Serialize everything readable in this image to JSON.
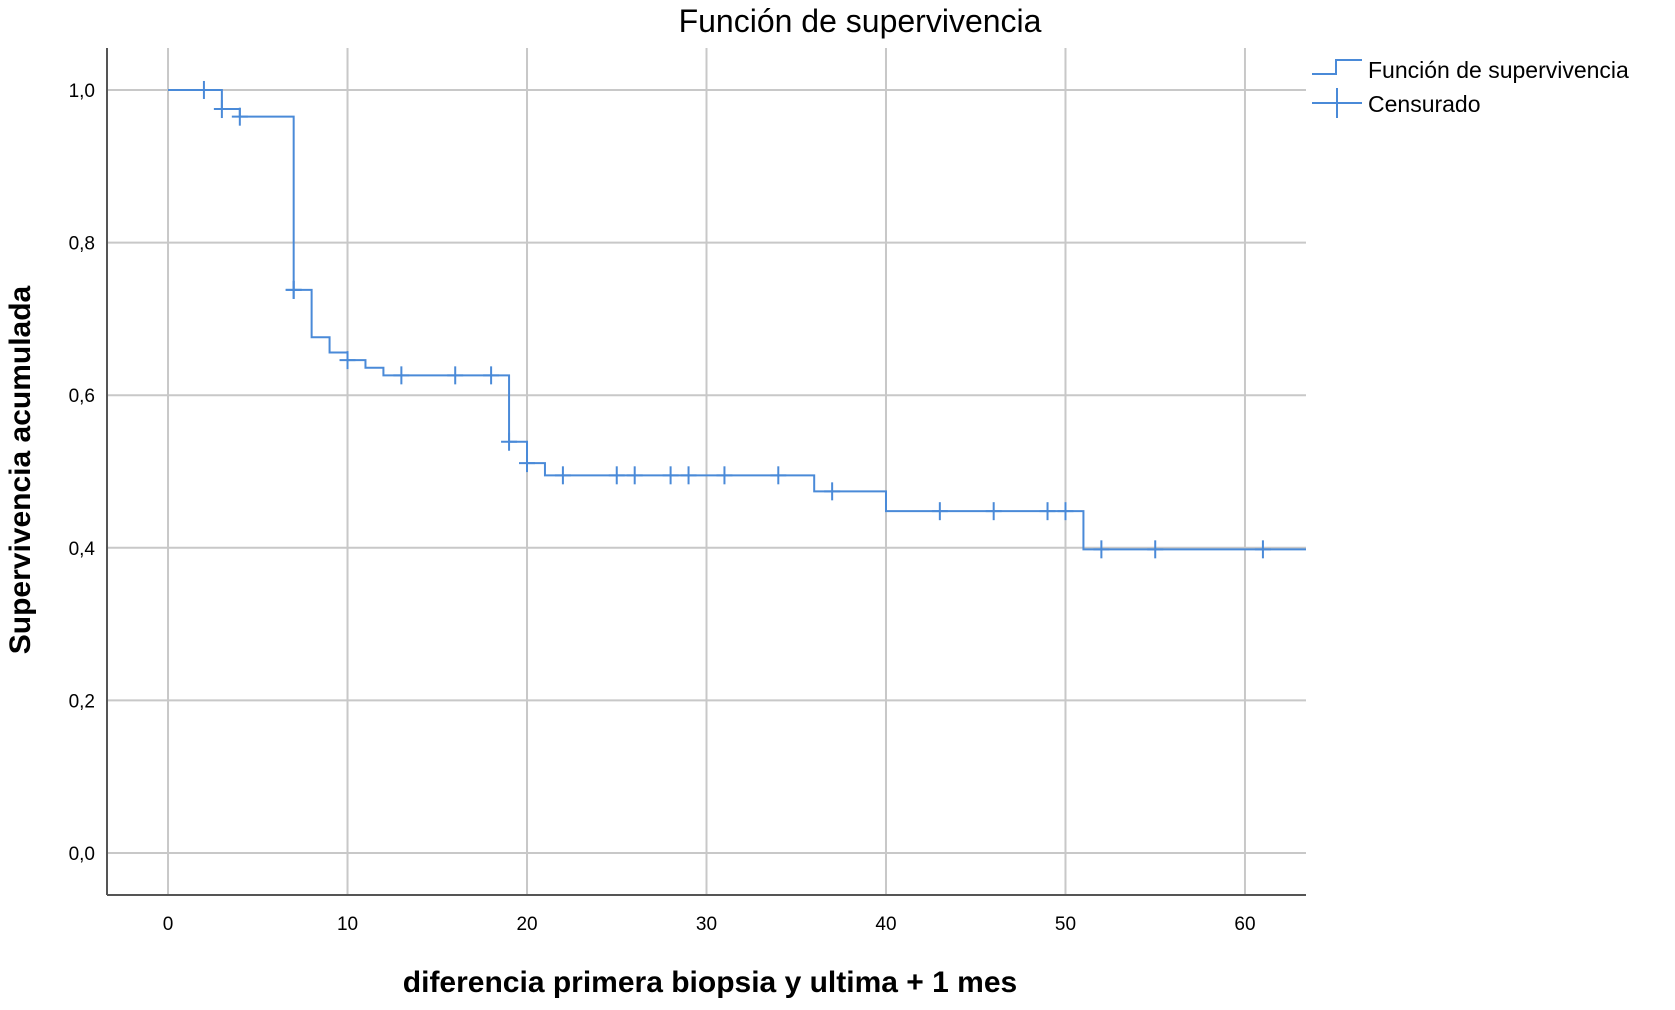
{
  "chart_data": {
    "type": "line",
    "title": "Función de supervivencia",
    "xlabel": "diferencia primera biopsia y ultima + 1 mes",
    "ylabel": "Supervivencia acumulada",
    "xlim": [
      -3.4,
      63.4
    ],
    "ylim": [
      -0.055,
      1.055
    ],
    "x_ticks": [
      0,
      10,
      20,
      30,
      40,
      50,
      60
    ],
    "x_tick_labels": [
      "0",
      "10",
      "20",
      "30",
      "40",
      "50",
      "60"
    ],
    "y_ticks": [
      0.0,
      0.2,
      0.4,
      0.6,
      0.8,
      1.0
    ],
    "y_tick_labels": [
      "0,0",
      "0,2",
      "0,4",
      "0,6",
      "0,8",
      "1,0"
    ],
    "grid": true,
    "legend_position": "top-right",
    "legend": [
      {
        "label": "Función de supervivencia",
        "symbol": "step"
      },
      {
        "label": "Censurado",
        "symbol": "plus"
      }
    ],
    "colors": {
      "series": "#4a8ad8",
      "grid": "#c8c8c8",
      "axis": "#555555"
    },
    "series": [
      {
        "name": "Función de supervivencia",
        "kind": "step",
        "points": [
          [
            0,
            1.0
          ],
          [
            3,
            0.975
          ],
          [
            4,
            0.965
          ],
          [
            7,
            0.738
          ],
          [
            8,
            0.676
          ],
          [
            9,
            0.656
          ],
          [
            10,
            0.646
          ],
          [
            11,
            0.636
          ],
          [
            12,
            0.626
          ],
          [
            19,
            0.539
          ],
          [
            20,
            0.511
          ],
          [
            21,
            0.495
          ],
          [
            36,
            0.474
          ],
          [
            40,
            0.448
          ],
          [
            51,
            0.398
          ],
          [
            63.4,
            0.398
          ]
        ]
      },
      {
        "name": "Censurado",
        "kind": "censor",
        "points": [
          [
            2,
            1.0
          ],
          [
            3,
            0.975
          ],
          [
            4,
            0.965
          ],
          [
            7,
            0.738
          ],
          [
            7,
            0.738
          ],
          [
            10,
            0.646
          ],
          [
            13,
            0.626
          ],
          [
            16,
            0.626
          ],
          [
            18,
            0.626
          ],
          [
            19,
            0.539
          ],
          [
            20,
            0.511
          ],
          [
            22,
            0.495
          ],
          [
            25,
            0.495
          ],
          [
            26,
            0.495
          ],
          [
            28,
            0.495
          ],
          [
            29,
            0.495
          ],
          [
            31,
            0.495
          ],
          [
            34,
            0.495
          ],
          [
            37,
            0.474
          ],
          [
            43,
            0.448
          ],
          [
            46,
            0.448
          ],
          [
            49,
            0.448
          ],
          [
            50,
            0.448
          ],
          [
            52,
            0.398
          ],
          [
            55,
            0.398
          ],
          [
            61,
            0.398
          ]
        ]
      }
    ]
  }
}
